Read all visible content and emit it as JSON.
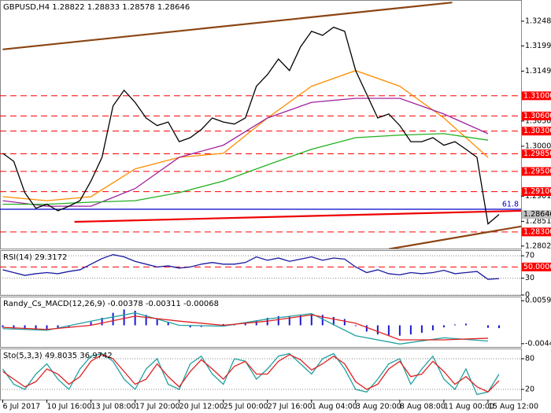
{
  "chart_data": [
    {
      "type": "price",
      "title": "GBPUSD,H4  1.28822 1.28833 1.28578 1.28646",
      "xlim": [
        -1,
        188
      ],
      "xticks": [
        {
          "value": 0,
          "label": "6 Jul 2017"
        },
        {
          "value": 16,
          "label": "10 Jul 16:00"
        },
        {
          "value": 32,
          "label": "13 Jul 08:00"
        },
        {
          "value": 48,
          "label": "17 Jul 20:00"
        },
        {
          "value": 64,
          "label": "20 Jul 12:00"
        },
        {
          "value": 80,
          "label": "25 Jul 00:00"
        },
        {
          "value": 96,
          "label": "27 Jul 16:00"
        },
        {
          "value": 112,
          "label": "1 Aug 04:00"
        },
        {
          "value": 128,
          "label": "3 Aug 20:00"
        },
        {
          "value": 144,
          "label": "8 Aug 08:00"
        },
        {
          "value": 160,
          "label": "11 Aug 00:00"
        },
        {
          "value": 176,
          "label": "15 Aug 12:00"
        }
      ],
      "ylim": [
        1.2797,
        1.329
      ],
      "yticks": [
        {
          "value": 1.3248,
          "label": "1.32480"
        },
        {
          "value": 1.3199,
          "label": "1.31990"
        },
        {
          "value": 1.3149,
          "label": "1.31490"
        },
        {
          "value": 1.305,
          "label": "1.30500"
        },
        {
          "value": 1.3,
          "label": "1.30000"
        },
        {
          "value": 1.2901,
          "label": "1.29010"
        },
        {
          "value": 1.2851,
          "label": "1.28510"
        },
        {
          "value": 1.2802,
          "label": "1.28020"
        }
      ],
      "level_color": "#ff0000",
      "levels": [
        {
          "value": 1.31,
          "label": "1.31000"
        },
        {
          "value": 1.306,
          "label": "1.30600"
        },
        {
          "value": 1.303,
          "label": "1.30300"
        },
        {
          "value": 1.2985,
          "label": "1.29850"
        },
        {
          "value": 1.295,
          "label": "1.29500"
        },
        {
          "value": 1.291,
          "label": "1.29100"
        },
        {
          "value": 1.283,
          "label": "1.28300"
        }
      ],
      "fib": {
        "value": 1.2875,
        "label": "61.8",
        "color": "#0000cc"
      },
      "current": 1.28646,
      "trendlines": [
        {
          "color": "#8b4513",
          "x": [
            0,
            163
          ],
          "values": [
            1.3192,
            1.3285
          ]
        },
        {
          "color": "#8b4513",
          "x": [
            140,
            188
          ],
          "values": [
            1.2796,
            1.2841
          ]
        },
        {
          "color": "#ee0000",
          "x": [
            26,
            188
          ],
          "values": [
            1.285,
            1.2872
          ]
        }
      ],
      "x": [
        0,
        4,
        8,
        12,
        16,
        20,
        24,
        28,
        32,
        36,
        40,
        44,
        48,
        52,
        56,
        60,
        64,
        68,
        72,
        76,
        80,
        84,
        88,
        92,
        96,
        100,
        104,
        108,
        112,
        116,
        120,
        124,
        128,
        132,
        136,
        140,
        144,
        148,
        152,
        156,
        160,
        164,
        168,
        172,
        176,
        180
      ],
      "series": [
        {
          "color": "#ff8c00",
          "x": [
            0,
            16,
            32,
            48,
            64,
            80,
            96,
            112,
            128,
            144,
            160,
            176
          ],
          "values": [
            1.29,
            1.2892,
            1.29,
            1.2955,
            1.2978,
            1.2986,
            1.3056,
            1.3119,
            1.315,
            1.3119,
            1.3056,
            1.2978
          ]
        },
        {
          "color": "#a0209e",
          "x": [
            0,
            16,
            32,
            48,
            64,
            80,
            96,
            112,
            128,
            144,
            160,
            176
          ],
          "values": [
            1.2892,
            1.2881,
            1.2881,
            1.2916,
            1.2978,
            1.3002,
            1.3056,
            1.3087,
            1.3095,
            1.3095,
            1.3064,
            1.3025
          ]
        },
        {
          "color": "#22b022",
          "x": [
            0,
            16,
            32,
            48,
            64,
            80,
            96,
            112,
            128,
            144,
            160,
            176
          ],
          "values": [
            1.2885,
            1.2885,
            1.2889,
            1.2892,
            1.2908,
            1.2931,
            1.2963,
            1.2994,
            1.3017,
            1.3022,
            1.3025,
            1.3012
          ]
        },
        {
          "color": "#000000",
          "values": [
            1.2986,
            1.297,
            1.2908,
            1.2877,
            1.2885,
            1.2872,
            1.2881,
            1.2892,
            1.2931,
            1.2978,
            1.308,
            1.3111,
            1.3087,
            1.3056,
            1.3041,
            1.3048,
            1.3009,
            1.3017,
            1.3033,
            1.3056,
            1.3048,
            1.3044,
            1.3056,
            1.3119,
            1.3142,
            1.3173,
            1.315,
            1.3197,
            1.3228,
            1.322,
            1.3236,
            1.3228,
            1.315,
            1.3103,
            1.3056,
            1.3064,
            1.3041,
            1.3009,
            1.3009,
            1.3017,
            1.3002,
            1.3009,
            1.2994,
            1.2978,
            1.2846,
            1.28646
          ]
        }
      ]
    },
    {
      "type": "line",
      "title": "RSI(14) 29.3172",
      "ylim": [
        0,
        80
      ],
      "yticks": [
        0,
        30,
        70
      ],
      "grid": true,
      "level_color": "#ff0000",
      "levels": [
        {
          "value": 50,
          "label": "50.0000"
        }
      ],
      "x": [
        0,
        4,
        8,
        12,
        16,
        20,
        24,
        28,
        32,
        36,
        40,
        44,
        48,
        52,
        56,
        60,
        64,
        68,
        72,
        76,
        80,
        84,
        88,
        92,
        96,
        100,
        104,
        108,
        112,
        116,
        120,
        124,
        128,
        132,
        136,
        140,
        144,
        148,
        152,
        156,
        160,
        164,
        168,
        172,
        176,
        180
      ],
      "series": [
        {
          "color": "#1a1aa0",
          "values": [
            45,
            40,
            35,
            38,
            40,
            38,
            42,
            45,
            55,
            65,
            72,
            68,
            60,
            55,
            50,
            52,
            48,
            50,
            55,
            58,
            55,
            55,
            58,
            68,
            62,
            66,
            60,
            64,
            68,
            62,
            66,
            64,
            50,
            40,
            45,
            38,
            36,
            40,
            38,
            40,
            44,
            38,
            40,
            42,
            28,
            29.3172
          ]
        }
      ]
    },
    {
      "type": "macd",
      "title": "Randy_Cs_MACD(12,26,9) -0.00378 -0.00311 -0.00068",
      "ylim": [
        -0.0052,
        0.0069
      ],
      "yticks": [
        -0.00442,
        0.00591
      ],
      "grid": false,
      "x": [
        0,
        4,
        8,
        12,
        16,
        20,
        24,
        28,
        32,
        36,
        40,
        44,
        48,
        52,
        56,
        60,
        64,
        68,
        72,
        76,
        80,
        84,
        88,
        92,
        96,
        100,
        104,
        108,
        112,
        116,
        120,
        124,
        128,
        132,
        136,
        140,
        144,
        148,
        152,
        156,
        160,
        164,
        168,
        172,
        176,
        180
      ],
      "series": [
        {
          "color": "#1a1ad0",
          "style": "histogram",
          "values": [
            -0.0005,
            -0.0008,
            -0.001,
            -0.0012,
            -0.001,
            -0.0008,
            -0.0004,
            0,
            0.0008,
            0.0018,
            0.003,
            0.0038,
            0.0035,
            0.0025,
            0.0015,
            0.0008,
            0,
            -0.0005,
            -0.0004,
            0,
            0.0003,
            0.0003,
            0.0005,
            0.0012,
            0.0018,
            0.0022,
            0.0022,
            0.0025,
            0.0028,
            0.0025,
            0.002,
            0.0015,
            -0.0002,
            -0.0015,
            -0.0022,
            -0.0024,
            -0.0025,
            -0.0022,
            -0.0018,
            -0.0012,
            -0.0005,
            0.0002,
            0.0004,
            0,
            -0.0006,
            -0.00068
          ]
        },
        {
          "color": "#20a0a0",
          "x": [
            0,
            16,
            32,
            48,
            64,
            80,
            96,
            112,
            128,
            144,
            160,
            176
          ],
          "values": [
            -0.0008,
            -0.0012,
            0.001,
            0.003,
            0,
            -0.0002,
            0.0015,
            0.0028,
            -0.0025,
            -0.0045,
            -0.003,
            -0.00378
          ]
        },
        {
          "color": "#e02020",
          "x": [
            0,
            16,
            32,
            48,
            64,
            80,
            96,
            112,
            128,
            144,
            160,
            176
          ],
          "values": [
            -0.0005,
            -0.001,
            0,
            0.0022,
            0.001,
            0,
            0.001,
            0.0025,
            0.0005,
            -0.0035,
            -0.0035,
            -0.00311
          ]
        }
      ]
    },
    {
      "type": "line",
      "title": "Sto(5,3,3) 49.8035 36.9742",
      "ylim": [
        0,
        100
      ],
      "yticks": [
        20,
        80
      ],
      "grid": true,
      "x": [
        0,
        4,
        8,
        12,
        16,
        20,
        24,
        28,
        32,
        36,
        40,
        44,
        48,
        52,
        56,
        60,
        64,
        68,
        72,
        76,
        80,
        84,
        88,
        92,
        96,
        100,
        104,
        108,
        112,
        116,
        120,
        124,
        128,
        132,
        136,
        140,
        144,
        148,
        152,
        156,
        160,
        164,
        168,
        172,
        176,
        180
      ],
      "series": [
        {
          "color": "#20a0a0",
          "values": [
            60,
            30,
            20,
            50,
            70,
            40,
            20,
            60,
            85,
            90,
            75,
            40,
            20,
            60,
            80,
            30,
            20,
            70,
            85,
            50,
            30,
            80,
            75,
            40,
            60,
            85,
            90,
            70,
            50,
            80,
            90,
            60,
            20,
            15,
            40,
            70,
            80,
            30,
            60,
            85,
            40,
            20,
            60,
            10,
            15,
            49.8035
          ]
        },
        {
          "color": "#e02020",
          "values": [
            55,
            40,
            25,
            35,
            60,
            50,
            30,
            45,
            75,
            88,
            80,
            55,
            30,
            40,
            70,
            45,
            25,
            55,
            78,
            60,
            40,
            65,
            75,
            50,
            50,
            75,
            88,
            78,
            58,
            70,
            85,
            70,
            35,
            20,
            30,
            60,
            75,
            45,
            50,
            75,
            55,
            30,
            45,
            25,
            15,
            36.9742
          ]
        }
      ]
    }
  ]
}
